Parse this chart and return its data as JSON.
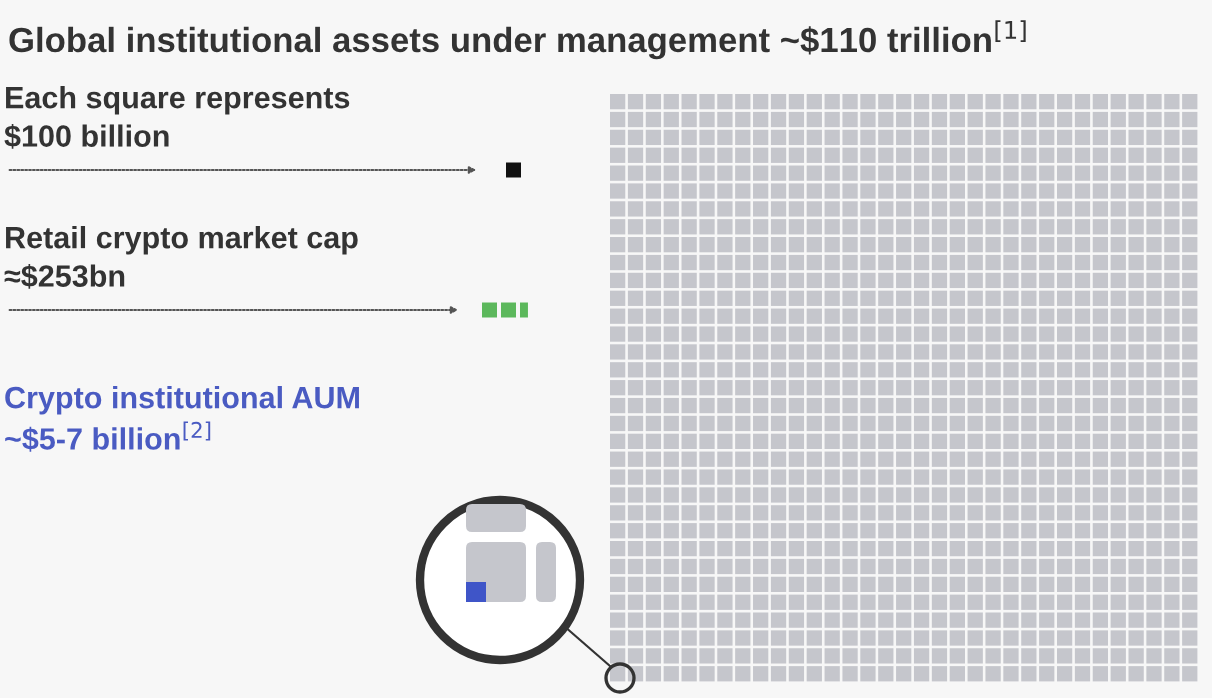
{
  "chart_data": {
    "type": "other",
    "title": "Global institutional assets under management ~$110 trillion$^{[1]}$",
    "categories": [
      "Each square represents",
      "Retail crypto market cap"
    ],
    "values": [
      100,
      253
    ],
    "value_labels": [
      "$100 billion",
      "≈$253bn"
    ],
    "colors": [
      "#111111",
      "#5cb85c"
    ],
    "annotations": [
      "Crypto institutional AUM\n~$5-7 billion$^{[2]}$"
    ]
  }
}
